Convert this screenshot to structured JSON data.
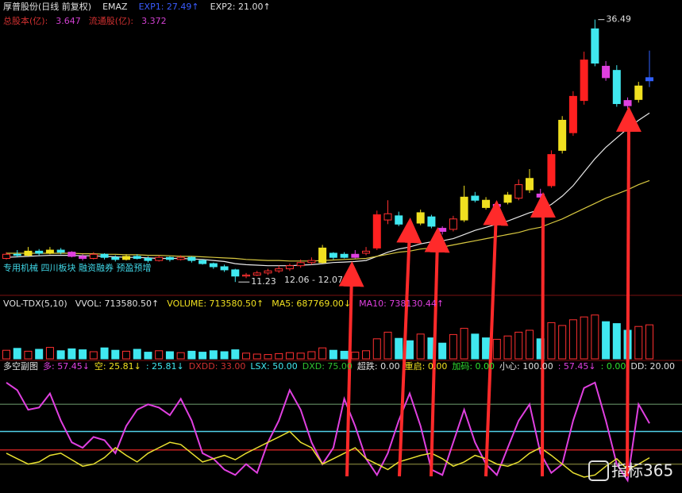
{
  "header": {
    "row1": [
      {
        "text": "厚普股份(日线 前复权)",
        "color": "#e0e0e0"
      },
      {
        "text": "EMAZ",
        "color": "#e0e0e0"
      },
      {
        "text": "EXP1: 27.49↑",
        "color": "#3a5cff"
      },
      {
        "text": "EXP2: 21.00↑",
        "color": "#e0e0e0"
      }
    ],
    "row2": [
      {
        "text": "总股本(亿):",
        "color": "#d03030"
      },
      {
        "text": "3.647",
        "color": "#d040d0"
      },
      {
        "text": "流通股(亿):",
        "color": "#d03030"
      },
      {
        "text": "3.372",
        "color": "#d040d0"
      }
    ]
  },
  "main": {
    "type": "candlestick",
    "ylim": [
      10.1,
      37.0
    ],
    "tags": "专用机械 四川板块 融资融券 预盈预增",
    "high_label": "36.49",
    "low_label": "11.23",
    "range_label": "12.06 - 12.07",
    "candles": [
      [
        13.5,
        13.9,
        14.1,
        13.4
      ],
      [
        13.9,
        13.8,
        14.3,
        13.6
      ],
      [
        13.8,
        14.2,
        14.6,
        13.7
      ],
      [
        14.2,
        14.0,
        14.4,
        13.8
      ],
      [
        14.0,
        14.3,
        14.6,
        13.9
      ],
      [
        14.3,
        14.1,
        14.5,
        13.9
      ],
      [
        14.1,
        13.7,
        14.2,
        13.6
      ],
      [
        13.7,
        13.5,
        13.9,
        13.3
      ],
      [
        13.5,
        13.9,
        14.1,
        13.4
      ],
      [
        13.9,
        13.6,
        14.0,
        13.4
      ],
      [
        13.6,
        13.4,
        13.8,
        13.2
      ],
      [
        13.4,
        13.7,
        13.9,
        13.3
      ],
      [
        13.7,
        13.5,
        13.9,
        13.4
      ],
      [
        13.5,
        13.3,
        13.7,
        13.1
      ],
      [
        13.3,
        13.6,
        13.8,
        13.2
      ],
      [
        13.6,
        13.4,
        13.7,
        13.2
      ],
      [
        13.4,
        13.6,
        13.8,
        13.3
      ],
      [
        13.6,
        13.3,
        13.7,
        13.1
      ],
      [
        13.3,
        13.0,
        13.4,
        12.9
      ],
      [
        13.0,
        12.7,
        13.1,
        12.5
      ],
      [
        12.7,
        12.4,
        12.9,
        12.2
      ],
      [
        12.4,
        11.8,
        12.5,
        11.23
      ],
      [
        11.8,
        11.9,
        12.1,
        11.6
      ],
      [
        11.9,
        12.1,
        12.3,
        11.8
      ],
      [
        12.1,
        12.3,
        12.5,
        11.9
      ],
      [
        12.3,
        12.5,
        12.8,
        12.1
      ],
      [
        12.5,
        12.8,
        13.0,
        12.3
      ],
      [
        12.8,
        13.1,
        13.4,
        12.6
      ],
      [
        13.1,
        13.3,
        13.6,
        12.9
      ],
      [
        13.1,
        14.5,
        14.8,
        13.0
      ],
      [
        14.0,
        13.6,
        14.1,
        13.4
      ],
      [
        13.9,
        13.6,
        14.1,
        13.5
      ],
      [
        13.6,
        13.9,
        14.3,
        13.5
      ],
      [
        14.0,
        14.2,
        14.6,
        13.8
      ],
      [
        14.5,
        17.7,
        18.1,
        14.3
      ],
      [
        17.2,
        17.8,
        19.1,
        16.8
      ],
      [
        17.6,
        16.8,
        18.0,
        16.6
      ],
      [
        16.6,
        16.3,
        16.9,
        16.0
      ],
      [
        16.9,
        17.9,
        18.2,
        16.7
      ],
      [
        17.5,
        16.6,
        17.7,
        16.4
      ],
      [
        16.4,
        16.1,
        16.6,
        15.8
      ],
      [
        16.3,
        17.3,
        17.6,
        16.1
      ],
      [
        17.2,
        19.4,
        20.5,
        17.0
      ],
      [
        19.5,
        19.1,
        19.9,
        18.9
      ],
      [
        19.1,
        18.4,
        19.4,
        18.2
      ],
      [
        18.5,
        18.7,
        19.0,
        18.3
      ],
      [
        18.9,
        19.6,
        19.9,
        18.7
      ],
      [
        19.3,
        20.6,
        21.1,
        19.1
      ],
      [
        20.1,
        21.2,
        22.1,
        19.8
      ],
      [
        19.7,
        19.4,
        20.2,
        19.2
      ],
      [
        20.5,
        23.5,
        23.9,
        20.3
      ],
      [
        23.9,
        26.8,
        27.2,
        23.6
      ],
      [
        25.6,
        29.1,
        29.6,
        25.3
      ],
      [
        28.7,
        32.6,
        33.4,
        28.3
      ],
      [
        32.3,
        35.6,
        36.49,
        32.0
      ],
      [
        32.0,
        30.9,
        32.5,
        30.6
      ],
      [
        31.6,
        28.4,
        32.1,
        28.1
      ],
      [
        28.7,
        28.2,
        29.0,
        27.9
      ],
      [
        28.8,
        30.1,
        30.5,
        28.5
      ],
      [
        30.6,
        30.9,
        33.5,
        30.0
      ]
    ],
    "colors": [
      "#ff3030",
      "#40e8f0",
      "#f0e020",
      "#40e8f0",
      "#f0e020",
      "#40e8f0",
      "#e040e0",
      "#e040e0",
      "#ff3030",
      "#40e8f0",
      "#40e8f0",
      "#f0e020",
      "#40e8f0",
      "#40e8f0",
      "#ff3030",
      "#40e8f0",
      "#ff3030",
      "#40e8f0",
      "#40e8f0",
      "#40e8f0",
      "#40e8f0",
      "#40e8f0",
      "#ff3030",
      "#ff3030",
      "#ff3030",
      "#ff3030",
      "#ff3030",
      "#ff3030",
      "#ff3030",
      "#f0e020",
      "#40e8f0",
      "#40e8f0",
      "#e040e0",
      "#ff3030",
      "#ff2020",
      "#ff3030",
      "#40e8f0",
      "#e040e0",
      "#f0e020",
      "#40e8f0",
      "#e040e0",
      "#ff3030",
      "#f0e020",
      "#40e8f0",
      "#f0e020",
      "#e040e0",
      "#f0e020",
      "#ff3030",
      "#f0e020",
      "#e040e0",
      "#ff2020",
      "#f0e020",
      "#ff2020",
      "#ff2020",
      "#40e8f0",
      "#e040e0",
      "#40e8f0",
      "#e040e0",
      "#f0e020",
      "#3060ff"
    ],
    "series": [
      {
        "name": "EXP1",
        "color": "#e8e8e8",
        "values": [
          13.6,
          13.65,
          13.7,
          13.75,
          13.8,
          13.8,
          13.8,
          13.75,
          13.75,
          13.7,
          13.65,
          13.6,
          13.6,
          13.55,
          13.5,
          13.5,
          13.5,
          13.45,
          13.4,
          13.3,
          13.2,
          13.0,
          12.9,
          12.85,
          12.8,
          12.8,
          12.8,
          12.85,
          12.9,
          13.0,
          13.1,
          13.15,
          13.2,
          13.3,
          13.7,
          14.1,
          14.4,
          14.6,
          14.9,
          15.1,
          15.2,
          15.4,
          15.8,
          16.2,
          16.5,
          16.8,
          17.1,
          17.5,
          17.9,
          18.2,
          18.7,
          19.5,
          20.5,
          21.8,
          23.1,
          24.2,
          25.1,
          26.0,
          26.8,
          27.49
        ]
      },
      {
        "name": "EXP2",
        "color": "#d8c840",
        "values": [
          14.0,
          14.0,
          14.0,
          14.0,
          14.0,
          14.0,
          14.0,
          13.95,
          13.95,
          13.9,
          13.9,
          13.85,
          13.85,
          13.8,
          13.8,
          13.75,
          13.7,
          13.7,
          13.65,
          13.6,
          13.55,
          13.5,
          13.4,
          13.35,
          13.3,
          13.3,
          13.25,
          13.25,
          13.25,
          13.3,
          13.35,
          13.4,
          13.45,
          13.5,
          13.7,
          13.9,
          14.1,
          14.2,
          14.4,
          14.5,
          14.6,
          14.8,
          15.0,
          15.2,
          15.4,
          15.6,
          15.8,
          16.0,
          16.3,
          16.5,
          16.9,
          17.3,
          17.8,
          18.3,
          18.8,
          19.3,
          19.7,
          20.1,
          20.6,
          21.0
        ]
      }
    ]
  },
  "volume": {
    "type": "bar",
    "ylim": [
      0,
      1000000
    ],
    "up_color": "#ff3030",
    "down_color": "#40e8f0",
    "legend": [
      {
        "text": "VOL-TDX(5,10)",
        "color": "#e0e0e0"
      },
      {
        "text": "VVOL: 713580.50↑",
        "color": "#e0e0e0"
      },
      {
        "text": "VOLUME: 713580.50↑",
        "color": "#f0e020"
      },
      {
        "text": "MA5: 687769.00↓",
        "color": "#f0e020"
      },
      {
        "text": "MA10: 738130.44↑",
        "color": "#e040e0"
      }
    ],
    "values": [
      180000,
      220000,
      160000,
      200000,
      240000,
      170000,
      210000,
      190000,
      150000,
      230000,
      180000,
      160000,
      200000,
      140000,
      170000,
      150000,
      130000,
      160000,
      140000,
      170000,
      150000,
      190000,
      120000,
      100000,
      90000,
      110000,
      130000,
      120000,
      150000,
      230000,
      180000,
      160000,
      140000,
      170000,
      420000,
      560000,
      430000,
      380000,
      520000,
      440000,
      330000,
      510000,
      640000,
      520000,
      440000,
      410000,
      480000,
      560000,
      600000,
      420000,
      760000,
      700000,
      820000,
      880000,
      920000,
      780000,
      740000,
      600000,
      680000,
      713580.5
    ]
  },
  "indicator": {
    "type": "line",
    "ylim": [
      0,
      100
    ],
    "legend": [
      {
        "text": "多空副图",
        "color": "#e0e0e0"
      },
      {
        "text": "多: 57.45↓",
        "color": "#e040e0"
      },
      {
        "text": "空: 25.81↓",
        "color": "#f0e020"
      },
      {
        "text": ": 25.81↓",
        "color": "#40e8f0"
      },
      {
        "text": "DXDD: 33.00",
        "color": "#d03030"
      },
      {
        "text": "LSX: 50.00",
        "color": "#40e8f0"
      },
      {
        "text": "DXD: 75.00",
        "color": "#30c030"
      },
      {
        "text": "超跌: 0.00",
        "color": "#e0e0e0"
      },
      {
        "text": "重启: 0.00",
        "color": "#f0e020"
      },
      {
        "text": "加码: 0.00",
        "color": "#30e030"
      },
      {
        "text": "小心: 100.00",
        "color": "#e0e0e0"
      },
      {
        "text": ": 57.45↓",
        "color": "#e040e0"
      },
      {
        "text": ": 0.00",
        "color": "#30e030"
      },
      {
        "text": "DD: 20.00",
        "color": "#e0e0e0"
      }
    ],
    "levels": [
      {
        "value": 75,
        "color": "#4a6a4a"
      },
      {
        "value": 50,
        "color": "#50d0e8"
      },
      {
        "value": 33,
        "color": "#c02020"
      },
      {
        "value": 20,
        "color": "#6a6a30"
      }
    ],
    "series": [
      {
        "name": "多",
        "color": "#e040e0",
        "values": [
          95,
          88,
          70,
          72,
          85,
          60,
          40,
          35,
          45,
          42,
          30,
          55,
          70,
          75,
          72,
          65,
          80,
          60,
          30,
          25,
          15,
          10,
          20,
          12,
          40,
          60,
          88,
          70,
          40,
          20,
          35,
          80,
          55,
          25,
          10,
          30,
          60,
          85,
          55,
          15,
          10,
          40,
          70,
          40,
          20,
          10,
          35,
          60,
          75,
          30,
          12,
          20,
          60,
          90,
          95,
          60,
          20,
          5,
          75,
          57.45
        ]
      },
      {
        "name": "空",
        "color": "#e8e030",
        "values": [
          30,
          25,
          20,
          22,
          28,
          30,
          24,
          18,
          20,
          26,
          35,
          28,
          22,
          30,
          35,
          40,
          38,
          30,
          22,
          25,
          28,
          24,
          30,
          35,
          40,
          45,
          50,
          40,
          35,
          20,
          25,
          30,
          35,
          25,
          20,
          15,
          22,
          25,
          28,
          30,
          25,
          18,
          22,
          28,
          25,
          20,
          18,
          22,
          30,
          35,
          28,
          20,
          12,
          8,
          10,
          18,
          25,
          15,
          20,
          25.81
        ]
      }
    ]
  },
  "watermark": "指标365"
}
